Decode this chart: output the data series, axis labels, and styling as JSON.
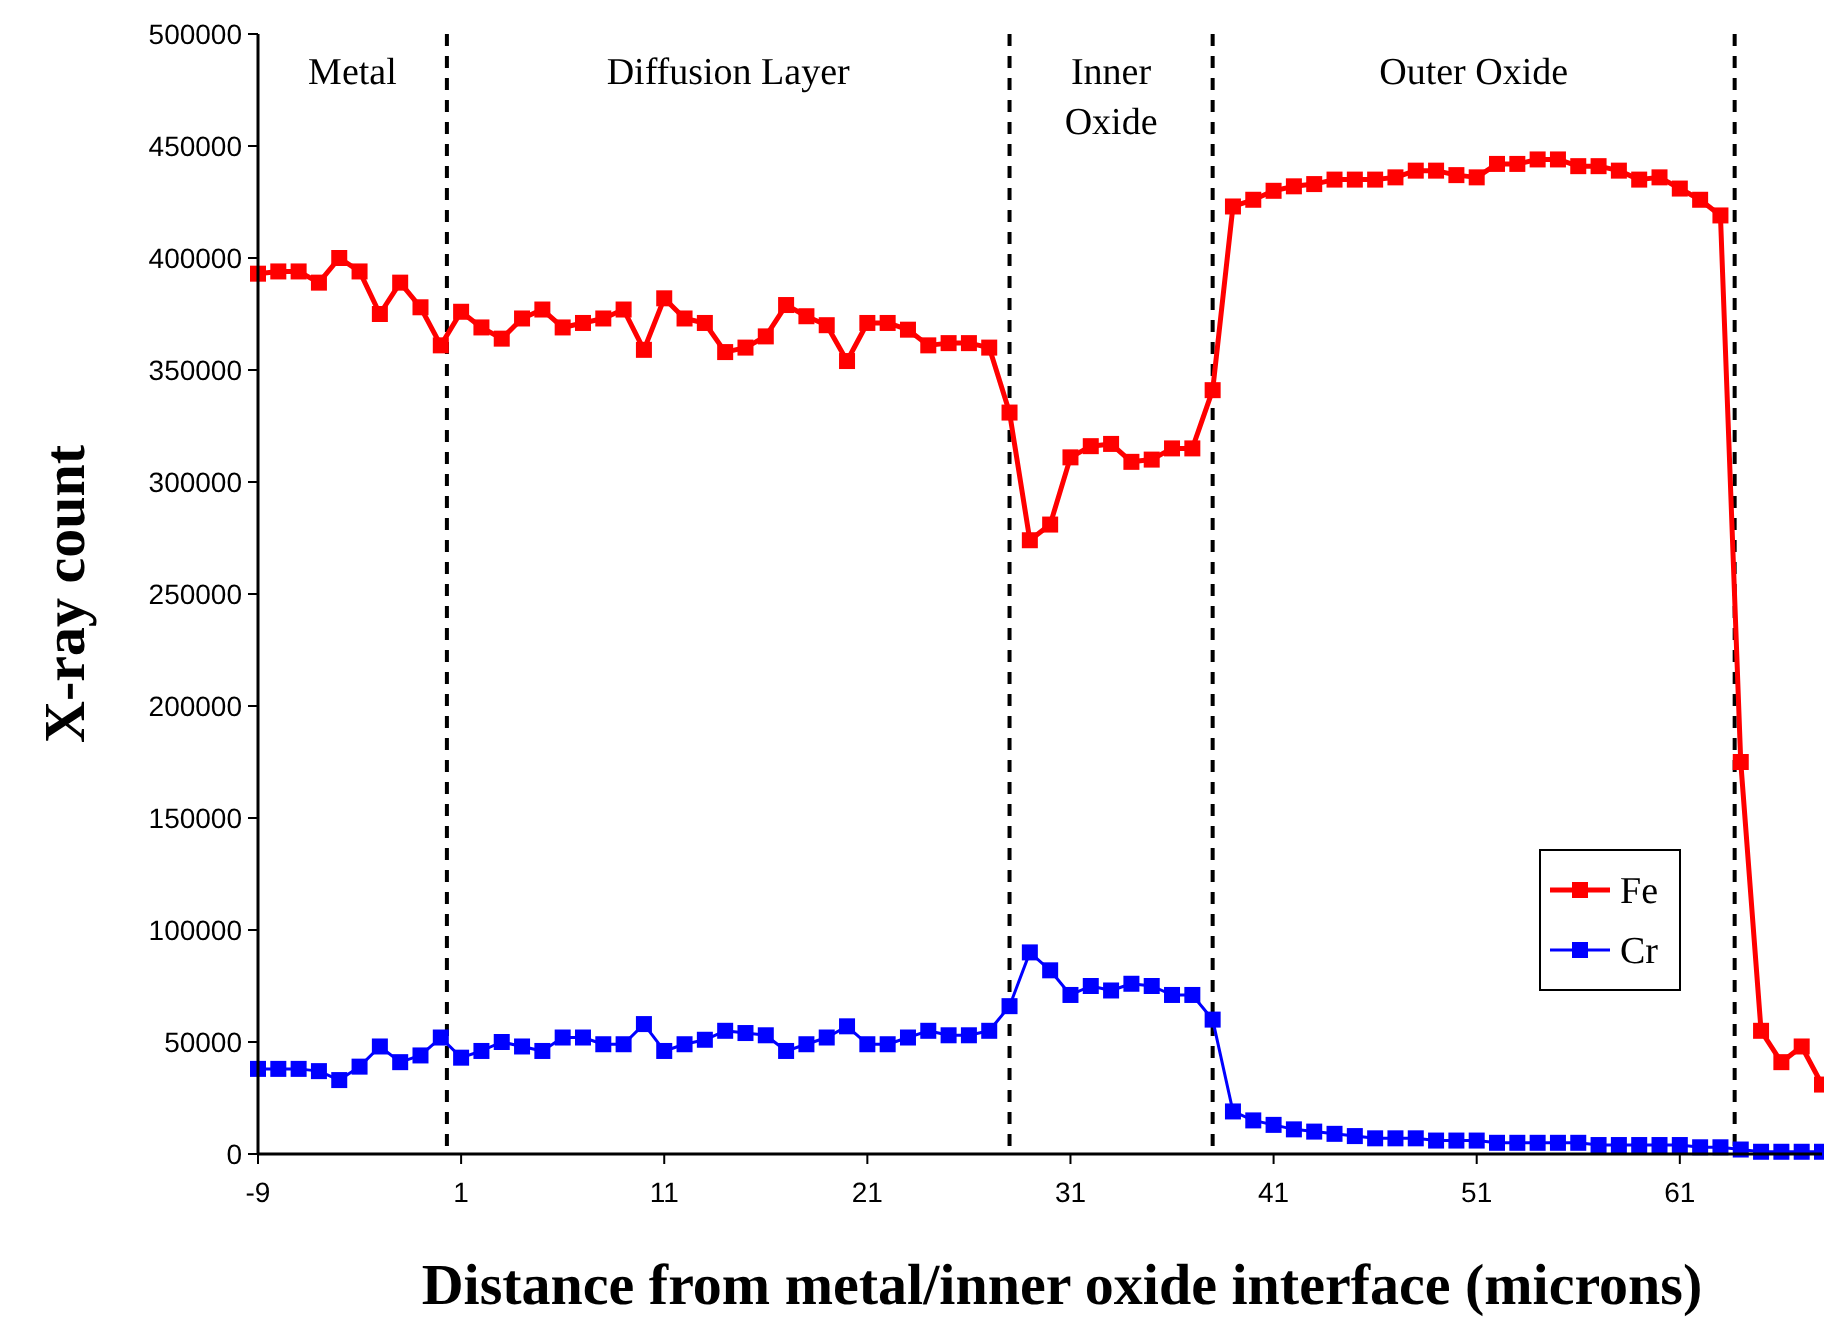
{
  "chart_data": {
    "type": "line",
    "xlabel": "Distance from metal/inner oxide interface (microns)",
    "ylabel": "X-ray count",
    "x": [
      -9,
      -8,
      -7,
      -6,
      -5,
      -4,
      -3,
      -2,
      -1,
      0,
      1,
      2,
      3,
      4,
      5,
      6,
      7,
      8,
      9,
      10,
      11,
      12,
      13,
      14,
      15,
      16,
      17,
      18,
      19,
      20,
      21,
      22,
      23,
      24,
      25,
      26,
      27,
      28,
      29,
      30,
      31,
      32,
      33,
      34,
      35,
      36,
      37,
      38,
      39,
      40,
      41,
      42,
      43,
      44,
      45,
      46,
      47,
      48,
      49,
      50,
      51,
      52,
      53,
      54,
      55,
      56,
      57,
      58,
      59,
      60,
      61,
      62,
      63,
      64,
      65,
      66,
      67,
      68
    ],
    "series": [
      {
        "name": "Fe",
        "color": "#ff0000",
        "values": [
          393000,
          394000,
          394000,
          389000,
          400000,
          394000,
          375000,
          389000,
          378000,
          361000,
          376000,
          369000,
          364000,
          373000,
          377000,
          369000,
          371000,
          373000,
          377000,
          359000,
          382000,
          373000,
          371000,
          358000,
          360000,
          365000,
          379000,
          374000,
          370000,
          354000,
          371000,
          371000,
          368000,
          361000,
          362000,
          362000,
          360000,
          331000,
          274000,
          281000,
          311000,
          316000,
          317000,
          309000,
          310000,
          315000,
          315000,
          341000,
          423000,
          426000,
          430000,
          432000,
          433000,
          435000,
          435000,
          435000,
          436000,
          439000,
          439000,
          437000,
          436000,
          442000,
          442000,
          444000,
          444000,
          441000,
          441000,
          439000,
          435000,
          436000,
          431000,
          426000,
          419000,
          175000,
          55000,
          41000,
          48000,
          31000
        ]
      },
      {
        "name": "Cr",
        "color": "#0000ff",
        "values": [
          38000,
          38000,
          38000,
          37000,
          33000,
          39000,
          48000,
          41000,
          44000,
          52000,
          43000,
          46000,
          50000,
          48000,
          46000,
          52000,
          52000,
          49000,
          49000,
          58000,
          46000,
          49000,
          51000,
          55000,
          54000,
          53000,
          46000,
          49000,
          52000,
          57000,
          49000,
          49000,
          52000,
          55000,
          53000,
          53000,
          55000,
          66000,
          90000,
          82000,
          71000,
          75000,
          73000,
          76000,
          75000,
          71000,
          71000,
          60000,
          19000,
          15000,
          13000,
          11000,
          10000,
          9000,
          8000,
          7000,
          7000,
          7000,
          6000,
          6000,
          6000,
          5000,
          5000,
          5000,
          5000,
          5000,
          4000,
          4000,
          4000,
          4000,
          4000,
          3000,
          3000,
          2000,
          1000,
          1000,
          1000,
          1000
        ]
      }
    ],
    "xlim": [
      -9,
      68
    ],
    "xticks": [
      -9,
      1,
      11,
      21,
      31,
      41,
      51,
      61
    ],
    "ylim": [
      0,
      500000
    ],
    "yticks": [
      0,
      50000,
      100000,
      150000,
      200000,
      250000,
      300000,
      350000,
      400000,
      450000,
      500000
    ],
    "ref_lines": [
      {
        "axis": "x",
        "value": 0.3,
        "color": "#000000",
        "line_style": "dashed"
      },
      {
        "axis": "x",
        "value": 28,
        "color": "#000000",
        "line_style": "dashed"
      },
      {
        "axis": "x",
        "value": 38,
        "color": "#000000",
        "line_style": "dashed"
      },
      {
        "axis": "x",
        "value": 63.7,
        "color": "#000000",
        "line_style": "dashed"
      }
    ],
    "annotations": [
      "Metal",
      "Diffusion Layer",
      "Inner Oxide",
      "Outer Oxide"
    ],
    "marker": "square",
    "line_style": "solid",
    "grid": false,
    "legend": "bottom right"
  }
}
